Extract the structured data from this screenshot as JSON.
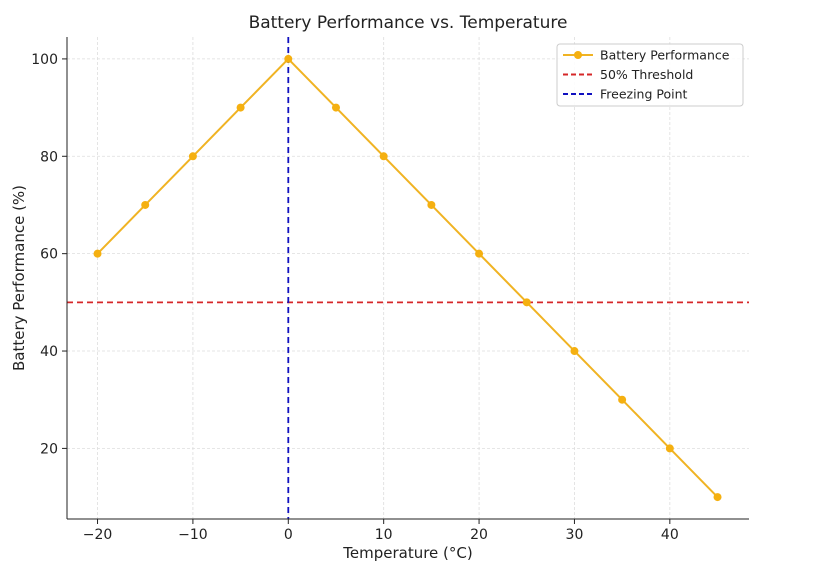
{
  "chart_data": {
    "type": "line",
    "title": "Battery Performance vs. Temperature",
    "xlabel": "Temperature (°C)",
    "ylabel": "Battery Performance (%)",
    "xlim": [
      -23.2,
      48.3
    ],
    "ylim": [
      5.5,
      104.5
    ],
    "xticks": [
      -20,
      -10,
      0,
      10,
      20,
      30,
      40
    ],
    "xtick_labels": [
      "−20",
      "−10",
      "0",
      "10",
      "20",
      "30",
      "40"
    ],
    "yticks": [
      20,
      40,
      60,
      80,
      100
    ],
    "ytick_labels": [
      "20",
      "40",
      "60",
      "80",
      "100"
    ],
    "grid": true,
    "legend_placement": "top-right",
    "series": [
      {
        "name": "Battery Performance",
        "color": "#f0b323",
        "marker": "circle",
        "x": [
          -20,
          -15,
          -10,
          -5,
          0,
          5,
          10,
          15,
          20,
          25,
          30,
          35,
          40,
          45
        ],
        "y": [
          60,
          70,
          80,
          90,
          100,
          90,
          80,
          70,
          60,
          50,
          40,
          30,
          20,
          10
        ]
      }
    ],
    "reference_lines": [
      {
        "name": "50% Threshold",
        "orientation": "horizontal",
        "value": 50,
        "color": "#d62728",
        "style": "dashed"
      },
      {
        "name": "Freezing Point",
        "orientation": "vertical",
        "value": 0,
        "color": "#1010c0",
        "style": "dashed"
      }
    ]
  }
}
